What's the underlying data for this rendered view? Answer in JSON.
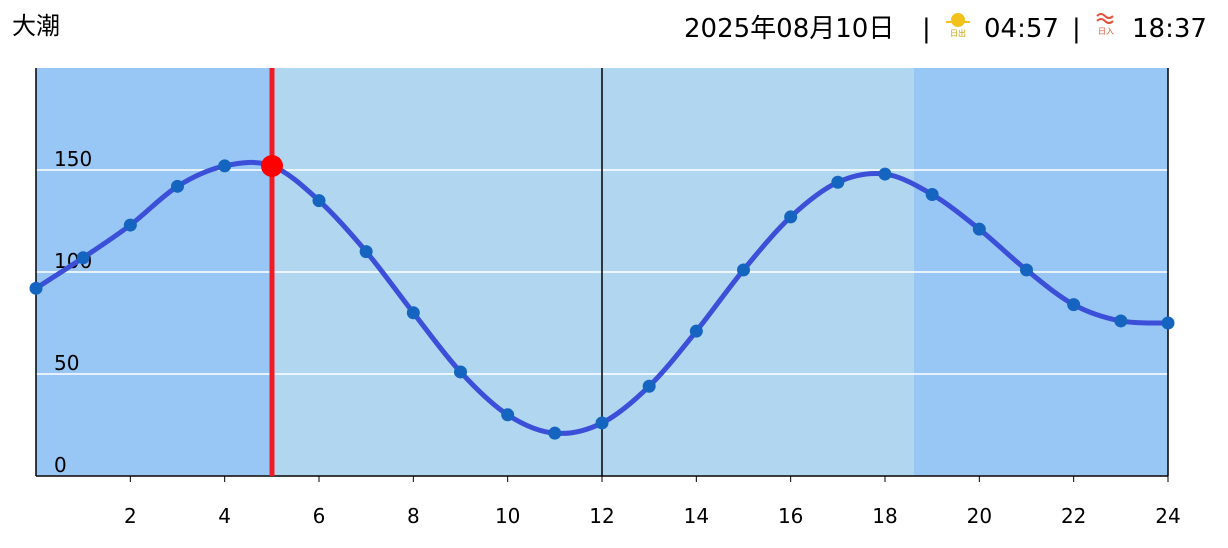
{
  "header": {
    "tide_name": "大潮",
    "date": "2025年08月10日",
    "sunrise_icon": "日出",
    "sunrise": "04:57",
    "sunset_icon": "日入",
    "sunset": "18:37"
  },
  "chart_data": {
    "type": "line",
    "x": [
      0,
      1,
      2,
      3,
      4,
      5,
      6,
      7,
      8,
      9,
      10,
      11,
      12,
      13,
      14,
      15,
      16,
      17,
      18,
      19,
      20,
      21,
      22,
      23,
      24
    ],
    "series": [
      {
        "color": "#3b4fd8",
        "values": [
          92,
          107,
          123,
          142,
          152,
          152,
          135,
          110,
          80,
          51,
          30,
          21,
          26,
          44,
          71,
          101,
          127,
          144,
          148,
          138,
          121,
          101,
          84,
          76,
          75
        ]
      }
    ],
    "xlim": [
      0,
      24
    ],
    "xticks": [
      2,
      4,
      6,
      8,
      10,
      12,
      14,
      16,
      18,
      20,
      22,
      24
    ],
    "ylim": [
      0,
      200
    ],
    "yticks": [
      0,
      50,
      100,
      150
    ],
    "grid": true
  }
}
